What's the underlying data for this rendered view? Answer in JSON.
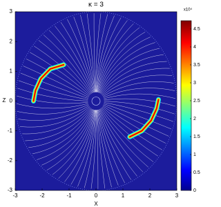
{
  "chart_data": {
    "type": "field",
    "title": "κ = 3",
    "x_label": "X",
    "y_label": "Z",
    "xlim": [
      -3,
      3
    ],
    "ylim": [
      -3,
      3
    ],
    "xticks": [
      -3,
      -2,
      -1,
      0,
      1,
      2,
      3
    ],
    "yticks": [
      -3,
      -2,
      -1,
      0,
      1,
      2,
      3
    ],
    "colorbar": {
      "label": "x10⁴",
      "clim": [
        0,
        4.73
      ],
      "ticks": [
        0,
        0.5,
        1,
        1.5,
        2,
        2.5,
        3,
        3.5,
        4,
        4.5
      ]
    },
    "background_color": "#1c1c9c"
  }
}
